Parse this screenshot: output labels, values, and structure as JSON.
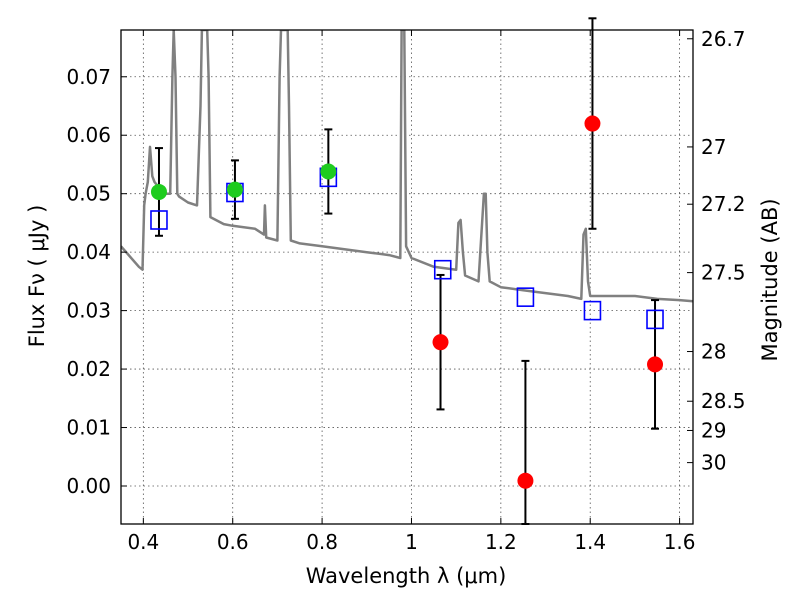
{
  "chart_data": {
    "type": "scatter",
    "xlabel": "Wavelength  λ (μm)",
    "ylabel": "Flux  Fν  ( μJy )",
    "y2label": "Magnitude (AB)",
    "xlim": [
      0.35,
      1.63
    ],
    "ylim": [
      -0.0065,
      0.078
    ],
    "grid": true,
    "x_ticks": [
      0.4,
      0.6,
      0.8,
      1.0,
      1.2,
      1.4,
      1.6
    ],
    "x_tick_labels": [
      "0.4",
      "0.6",
      "0.8",
      "1",
      "1.2",
      "1.4",
      "1.6"
    ],
    "y_ticks": [
      0.0,
      0.01,
      0.02,
      0.03,
      0.04,
      0.05,
      0.06,
      0.07
    ],
    "y_tick_labels": [
      "0.00",
      "0.01",
      "0.02",
      "0.03",
      "0.04",
      "0.05",
      "0.06",
      "0.07"
    ],
    "y2_ticks": [
      {
        "label": "26.7",
        "flux": 0.0765
      },
      {
        "label": "27",
        "flux": 0.058
      },
      {
        "label": "27.2",
        "flux": 0.0482
      },
      {
        "label": "27.5",
        "flux": 0.0365
      },
      {
        "label": "28",
        "flux": 0.023
      },
      {
        "label": "28.5",
        "flux": 0.0145
      },
      {
        "label": "29",
        "flux": 0.0095
      },
      {
        "label": "30",
        "flux": 0.004
      }
    ],
    "colors": {
      "model": "#808080",
      "observed_optical": "#1ecc1e",
      "observed_nir": "#ff0000",
      "model_photometry": "#0000ff",
      "errorbar": "#000000"
    },
    "series": [
      {
        "kind": "model_spectrum",
        "x": [
          0.35,
          0.39,
          0.398,
          0.402,
          0.405,
          0.41,
          0.415,
          0.42,
          0.425,
          0.43,
          0.44,
          0.45,
          0.46,
          0.465,
          0.468,
          0.472,
          0.476,
          0.48,
          0.5,
          0.52,
          0.528,
          0.531,
          0.534,
          0.537,
          0.54,
          0.543,
          0.546,
          0.55,
          0.58,
          0.6,
          0.65,
          0.67,
          0.672,
          0.675,
          0.7,
          0.705,
          0.708,
          0.711,
          0.714,
          0.717,
          0.72,
          0.723,
          0.726,
          0.73,
          0.75,
          0.8,
          0.85,
          0.9,
          0.95,
          0.975,
          0.978,
          0.981,
          0.984,
          0.988,
          1.0,
          1.05,
          1.1,
          1.105,
          1.11,
          1.115,
          1.12,
          1.15,
          1.162,
          1.166,
          1.17,
          1.175,
          1.2,
          1.25,
          1.3,
          1.35,
          1.38,
          1.385,
          1.39,
          1.395,
          1.4,
          1.45,
          1.5,
          1.55,
          1.6,
          1.63
        ],
        "y": [
          0.041,
          0.0375,
          0.037,
          0.048,
          0.05,
          0.052,
          0.058,
          0.053,
          0.052,
          0.0515,
          0.0505,
          0.05,
          0.05,
          0.07,
          0.078,
          0.07,
          0.05,
          0.0495,
          0.0485,
          0.048,
          0.065,
          0.078,
          0.078,
          0.078,
          0.078,
          0.078,
          0.07,
          0.046,
          0.0448,
          0.0445,
          0.044,
          0.043,
          0.048,
          0.0425,
          0.042,
          0.07,
          0.078,
          0.078,
          0.078,
          0.078,
          0.078,
          0.078,
          0.065,
          0.042,
          0.0415,
          0.041,
          0.0405,
          0.04,
          0.0395,
          0.039,
          0.078,
          0.078,
          0.078,
          0.041,
          0.039,
          0.0375,
          0.037,
          0.045,
          0.0455,
          0.04,
          0.036,
          0.035,
          0.05,
          0.05,
          0.04,
          0.035,
          0.034,
          0.0335,
          0.033,
          0.0325,
          0.032,
          0.043,
          0.044,
          0.035,
          0.0325,
          0.0325,
          0.0325,
          0.032,
          0.0318,
          0.0316
        ]
      },
      {
        "kind": "observed_optical",
        "x": [
          0.435,
          0.605,
          0.814
        ],
        "y": [
          0.0503,
          0.0507,
          0.0538
        ],
        "yerr": [
          0.0075,
          0.005,
          0.0072
        ]
      },
      {
        "kind": "observed_nir",
        "x": [
          1.065,
          1.255,
          1.405,
          1.545
        ],
        "y": [
          0.0246,
          0.0009,
          0.062,
          0.0208
        ],
        "yerr": [
          0.0115,
          0.0205,
          0.018,
          0.011
        ]
      },
      {
        "kind": "model_photometry",
        "x": [
          0.435,
          0.605,
          0.814,
          1.07,
          1.255,
          1.405,
          1.545
        ],
        "y": [
          0.0455,
          0.0502,
          0.0528,
          0.037,
          0.0323,
          0.03,
          0.0285
        ]
      }
    ]
  }
}
